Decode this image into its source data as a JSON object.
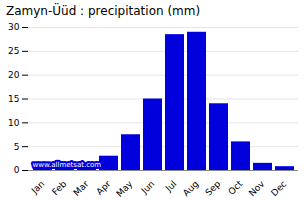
{
  "chart_data": {
    "type": "bar",
    "title": "Zamyn-Üüd : precipitation (mm)",
    "categories": [
      "Jan",
      "Feb",
      "Mar",
      "Apr",
      "May",
      "Jun",
      "Jul",
      "Aug",
      "Sep",
      "Oct",
      "Nov",
      "Dec"
    ],
    "values": [
      1,
      1,
      1,
      3,
      7.5,
      15,
      28.5,
      29,
      14,
      6,
      1.5,
      0.8
    ],
    "color": "#0000dd",
    "ylim": [
      0,
      30
    ],
    "yticks": [
      0,
      5,
      10,
      15,
      20,
      25,
      30
    ],
    "grid": true,
    "annotations": [
      "www.allmetsat.com"
    ]
  }
}
